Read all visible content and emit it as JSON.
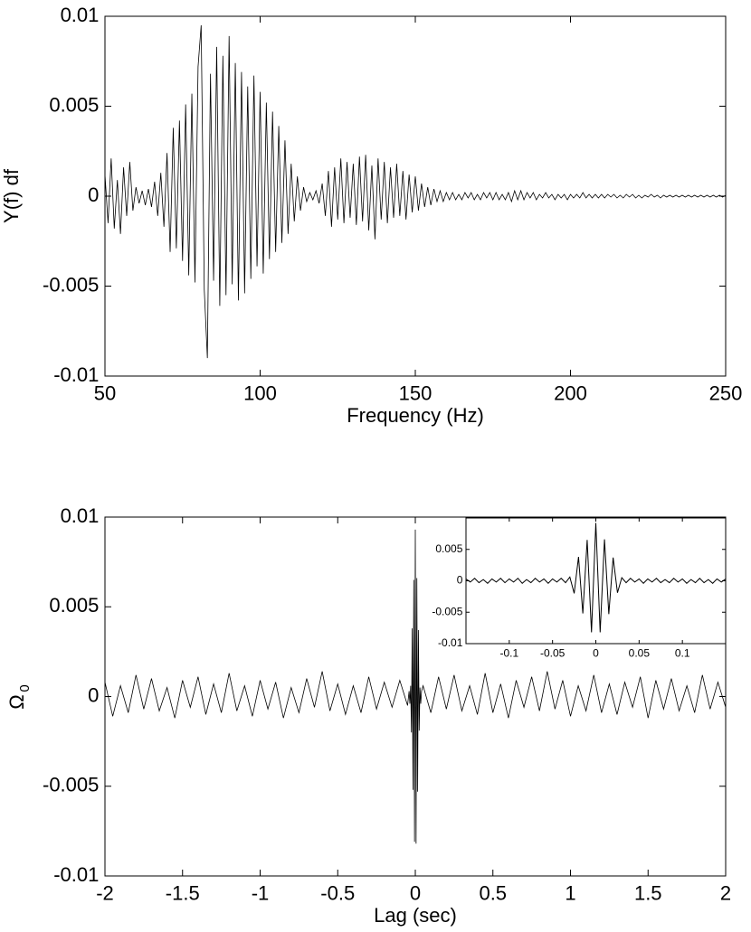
{
  "chart_data": [
    {
      "type": "line",
      "xlabel": "Frequency (Hz)",
      "ylabel": "Y(f) df",
      "color": "#000000",
      "xlim": [
        50,
        250
      ],
      "ylim": [
        -0.01,
        0.01
      ],
      "xticks": [
        50,
        100,
        150,
        200,
        250
      ],
      "yticks": [
        -0.01,
        -0.005,
        0,
        0.005,
        0.01
      ],
      "x": [
        50,
        51,
        52,
        53,
        54,
        55,
        56,
        57,
        58,
        59,
        60,
        61,
        62,
        63,
        64,
        65,
        66,
        67,
        68,
        69,
        70,
        71,
        72,
        73,
        74,
        75,
        76,
        77,
        78,
        79,
        80,
        81,
        82,
        83,
        84,
        85,
        86,
        87,
        88,
        89,
        90,
        91,
        92,
        93,
        94,
        95,
        96,
        97,
        98,
        99,
        100,
        101,
        102,
        103,
        104,
        105,
        106,
        107,
        108,
        109,
        110,
        111,
        112,
        113,
        114,
        115,
        116,
        117,
        118,
        119,
        120,
        121,
        122,
        123,
        124,
        125,
        126,
        127,
        128,
        129,
        130,
        131,
        132,
        133,
        134,
        135,
        136,
        137,
        138,
        139,
        140,
        141,
        142,
        143,
        144,
        145,
        146,
        147,
        148,
        149,
        150,
        151,
        152,
        153,
        154,
        155,
        156,
        157,
        158,
        159,
        160,
        161,
        162,
        163,
        164,
        165,
        166,
        167,
        168,
        169,
        170,
        171,
        172,
        173,
        174,
        175,
        176,
        177,
        178,
        179,
        180,
        181,
        182,
        183,
        184,
        185,
        186,
        187,
        188,
        189,
        190,
        191,
        192,
        193,
        194,
        195,
        196,
        197,
        198,
        199,
        200,
        201,
        202,
        203,
        204,
        205,
        206,
        207,
        208,
        209,
        210,
        211,
        212,
        213,
        214,
        215,
        216,
        217,
        218,
        219,
        220,
        221,
        222,
        223,
        224,
        225,
        226,
        227,
        228,
        229,
        230,
        231,
        232,
        233,
        234,
        235,
        236,
        237,
        238,
        239,
        240,
        241,
        242,
        243,
        244,
        245,
        246,
        247,
        248,
        249,
        250
      ],
      "values": [
        0.0012,
        -0.0015,
        0.0021,
        -0.0018,
        0.0009,
        -0.0021,
        0.0016,
        -0.0011,
        0.0019,
        -0.0008,
        0.0005,
        -0.0004,
        0.0003,
        -0.0005,
        0.0004,
        -0.0006,
        0.0008,
        -0.0011,
        0.0013,
        -0.0017,
        0.0024,
        -0.0031,
        0.0038,
        -0.0029,
        0.0042,
        -0.0036,
        0.0051,
        -0.0044,
        0.0057,
        -0.0048,
        0.0072,
        0.0095,
        -0.0052,
        -0.009,
        0.0068,
        -0.0047,
        0.0083,
        -0.0061,
        0.0078,
        -0.0055,
        0.0089,
        -0.0049,
        0.0074,
        -0.0058,
        0.0069,
        -0.0054,
        0.0061,
        -0.0046,
        0.0067,
        -0.0039,
        0.0058,
        -0.0043,
        0.0052,
        -0.0035,
        0.0047,
        -0.0031,
        0.0039,
        -0.0026,
        0.0031,
        -0.0021,
        0.0018,
        -0.0014,
        0.0011,
        -0.0008,
        0.0005,
        -0.0003,
        0.0002,
        -0.0002,
        0.0003,
        -0.0004,
        0.0007,
        -0.0011,
        0.0014,
        -0.0017,
        0.0016,
        -0.0013,
        0.0021,
        -0.0015,
        0.0019,
        -0.0012,
        0.0018,
        -0.0016,
        0.0022,
        -0.0014,
        0.0023,
        -0.0019,
        0.0017,
        -0.0024,
        0.0021,
        -0.0013,
        0.0019,
        -0.0015,
        0.0016,
        -0.0012,
        0.0018,
        -0.0011,
        0.0014,
        -0.0013,
        0.0012,
        -0.0009,
        0.0011,
        -0.0008,
        0.0007,
        -0.0006,
        0.0005,
        -0.0005,
        0.0004,
        -0.0003,
        0.0003,
        -0.0003,
        0.0002,
        -0.0002,
        0.0002,
        -0.0002,
        0.0001,
        -0.0002,
        0.0002,
        -0.0001,
        0.0002,
        -0.0002,
        0.0001,
        -0.0002,
        0.0002,
        -0.0001,
        0.0002,
        -0.0002,
        0.0002,
        -0.0002,
        0.0001,
        -0.0002,
        0.0002,
        -0.0003,
        0.0003,
        -0.0002,
        0.0003,
        -0.0002,
        0.0002,
        -0.0001,
        0.0002,
        -0.0002,
        0.0001,
        -0.0001,
        0.0002,
        -0.0001,
        0.0001,
        -0.0002,
        0.0001,
        -0.0001,
        0.0001,
        -0.0002,
        0.0001,
        -0.0001,
        0.0001,
        -0.0001,
        0.0002,
        -0.0001,
        0.0001,
        -0.0001,
        0.0001,
        -0.0001,
        0.0001,
        -0.0001,
        0.0001,
        -5e-05,
        0.0001,
        -0.0001,
        5e-05,
        -0.0001,
        0.0001,
        -5e-05,
        0.0001,
        -0.0001,
        5e-05,
        -0.0001,
        5e-05,
        -5e-05,
        0.0001,
        -5e-05,
        5e-05,
        -0.0001,
        5e-05,
        -5e-05,
        5e-05,
        -5e-05,
        5e-05,
        -5e-05,
        5e-05,
        -5e-05,
        5e-05,
        -5e-05,
        5e-05,
        -5e-05,
        5e-05,
        -5e-05,
        5e-05,
        -5e-05,
        5e-05,
        -5e-05,
        5e-05,
        -5e-05,
        5e-05
      ]
    },
    {
      "type": "line",
      "xlabel": "Lag (sec)",
      "ylabel": "Ω",
      "ylabel_subscript": "0",
      "color": "#000000",
      "xlim": [
        -2,
        2
      ],
      "ylim": [
        -0.01,
        0.01
      ],
      "xticks": [
        -2,
        -1.5,
        -1,
        -0.5,
        0,
        0.5,
        1,
        1.5,
        2
      ],
      "yticks": [
        -0.01,
        -0.005,
        0,
        0.005,
        0.01
      ],
      "x": [
        -2,
        -1.95,
        -1.9,
        -1.85,
        -1.8,
        -1.75,
        -1.7,
        -1.65,
        -1.6,
        -1.55,
        -1.5,
        -1.45,
        -1.4,
        -1.35,
        -1.3,
        -1.25,
        -1.2,
        -1.15,
        -1.1,
        -1.05,
        -1,
        -0.95,
        -0.9,
        -0.85,
        -0.8,
        -0.75,
        -0.7,
        -0.65,
        -0.6,
        -0.55,
        -0.5,
        -0.45,
        -0.4,
        -0.35,
        -0.3,
        -0.25,
        -0.2,
        -0.15,
        -0.1,
        -0.05,
        -0.04,
        -0.035,
        -0.03,
        -0.025,
        -0.02,
        -0.015,
        -0.01,
        -0.005,
        0,
        0.005,
        0.01,
        0.015,
        0.02,
        0.025,
        0.03,
        0.035,
        0.04,
        0.05,
        0.1,
        0.15,
        0.2,
        0.25,
        0.3,
        0.35,
        0.4,
        0.45,
        0.5,
        0.55,
        0.6,
        0.65,
        0.7,
        0.75,
        0.8,
        0.85,
        0.9,
        0.95,
        1,
        1.05,
        1.1,
        1.15,
        1.2,
        1.25,
        1.3,
        1.35,
        1.4,
        1.45,
        1.5,
        1.55,
        1.6,
        1.65,
        1.7,
        1.75,
        1.8,
        1.85,
        1.9,
        1.95,
        2
      ],
      "values": [
        0.0008,
        -0.0011,
        0.0006,
        -0.0009,
        0.0012,
        -0.0007,
        0.001,
        -0.0008,
        0.0005,
        -0.0012,
        0.0009,
        -0.0006,
        0.0011,
        -0.001,
        0.0007,
        -0.0009,
        0.0013,
        -0.0008,
        0.0006,
        -0.0011,
        0.0009,
        -0.0007,
        0.0008,
        -0.0012,
        0.0005,
        -0.0009,
        0.001,
        -0.0006,
        0.0014,
        -0.0008,
        0.0007,
        -0.001,
        0.0006,
        -0.0009,
        0.0011,
        -0.0007,
        0.0008,
        -0.0006,
        0.0009,
        -0.0005,
        0.0003,
        -0.0004,
        0.0006,
        -0.002,
        0.0038,
        -0.0052,
        0.0065,
        -0.0081,
        0.0093,
        -0.0082,
        0.0066,
        -0.0053,
        0.0037,
        -0.0019,
        0.0005,
        -0.0004,
        0.0003,
        0.0006,
        -0.0009,
        0.0011,
        -0.0007,
        0.0012,
        -0.0008,
        0.0006,
        -0.001,
        0.0013,
        -0.0009,
        0.0007,
        -0.0012,
        0.0009,
        -0.0006,
        0.0011,
        -0.0008,
        0.0014,
        -0.0007,
        0.0009,
        -0.0011,
        0.0006,
        -0.0008,
        0.0012,
        -0.0009,
        0.0007,
        -0.001,
        0.0008,
        -0.0006,
        0.0011,
        -0.0012,
        0.0009,
        -0.0007,
        0.001,
        -0.0008,
        0.0006,
        -0.0009,
        0.0012,
        -0.0007,
        0.0008,
        -0.0006
      ]
    },
    {
      "type": "line",
      "color": "#000000",
      "xlim": [
        -0.15,
        0.15
      ],
      "ylim": [
        -0.01,
        0.01
      ],
      "xticks": [
        -0.1,
        -0.05,
        0,
        0.05,
        0.1
      ],
      "yticks": [
        -0.01,
        -0.005,
        0,
        0.005
      ],
      "x": [
        -0.15,
        -0.145,
        -0.14,
        -0.135,
        -0.13,
        -0.125,
        -0.12,
        -0.115,
        -0.11,
        -0.105,
        -0.1,
        -0.095,
        -0.09,
        -0.085,
        -0.08,
        -0.075,
        -0.07,
        -0.065,
        -0.06,
        -0.055,
        -0.05,
        -0.045,
        -0.04,
        -0.035,
        -0.03,
        -0.025,
        -0.02,
        -0.015,
        -0.01,
        -0.005,
        0,
        0.005,
        0.01,
        0.015,
        0.02,
        0.025,
        0.03,
        0.035,
        0.04,
        0.045,
        0.05,
        0.055,
        0.06,
        0.065,
        0.07,
        0.075,
        0.08,
        0.085,
        0.09,
        0.095,
        0.1,
        0.105,
        0.11,
        0.115,
        0.12,
        0.125,
        0.13,
        0.135,
        0.14,
        0.145,
        0.15
      ],
      "values": [
        0.0003,
        -0.0002,
        0.0004,
        -0.0003,
        0.0002,
        -0.0004,
        0.0003,
        -0.0002,
        0.0004,
        -0.0003,
        0.0003,
        -0.0002,
        0.0004,
        -0.0004,
        0.0002,
        -0.0003,
        0.0004,
        -0.0002,
        0.0003,
        -0.0004,
        0.0003,
        -0.0002,
        0.0004,
        -0.0003,
        0.0006,
        -0.002,
        0.0038,
        -0.0052,
        0.0065,
        -0.0082,
        0.0092,
        -0.0082,
        0.0066,
        -0.0053,
        0.0037,
        -0.0019,
        0.0005,
        -0.0003,
        0.0004,
        -0.0002,
        0.0003,
        -0.0004,
        0.0003,
        -0.0002,
        0.0004,
        -0.0003,
        0.0002,
        -0.0003,
        0.0004,
        -0.0002,
        0.0003,
        -0.0004,
        0.0002,
        -0.0003,
        0.0004,
        -0.0003,
        0.0002,
        -0.0004,
        0.0003,
        -0.0002,
        0.0003
      ]
    }
  ]
}
